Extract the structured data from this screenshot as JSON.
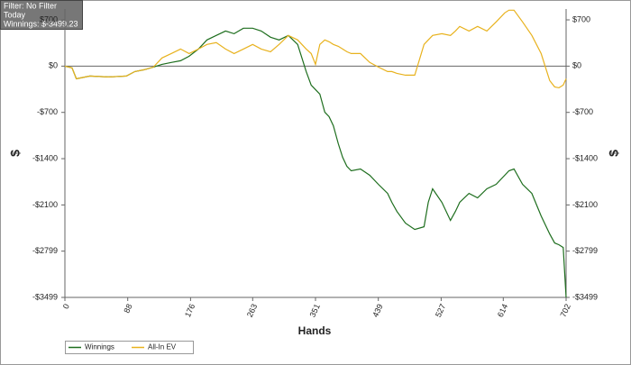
{
  "chart_data": {
    "type": "line",
    "annotations": [
      "Filter: No Filter",
      "Today",
      "Winnings: $-3499.23"
    ],
    "xlabel": "Hands",
    "ylabel": "$",
    "y2label": "$",
    "x": [
      0,
      10,
      16,
      35,
      61,
      86,
      98,
      111,
      124,
      136,
      149,
      162,
      174,
      187,
      199,
      212,
      225,
      237,
      250,
      263,
      275,
      288,
      300,
      313,
      326,
      338,
      345,
      351,
      357,
      364,
      370,
      376,
      383,
      389,
      395,
      401,
      414,
      427,
      439,
      452,
      458,
      465,
      477,
      490,
      503,
      509,
      515,
      528,
      540,
      547,
      553,
      566,
      578,
      591,
      604,
      616,
      622,
      629,
      641,
      654,
      667,
      679,
      686,
      692,
      698,
      702
    ],
    "series": [
      {
        "name": "Winnings",
        "color": "#1e6e1e",
        "values": [
          0,
          -27,
          -191,
          -150,
          -164,
          -150,
          -82,
          -55,
          -14,
          27,
          55,
          82,
          150,
          259,
          396,
          464,
          532,
          491,
          573,
          573,
          532,
          437,
          396,
          464,
          328,
          -82,
          -287,
          -355,
          -423,
          -696,
          -764,
          -901,
          -1174,
          -1379,
          -1515,
          -1583,
          -1556,
          -1652,
          -1788,
          -1925,
          -2061,
          -2198,
          -2375,
          -2471,
          -2430,
          -2061,
          -1856,
          -2061,
          -2334,
          -2198,
          -2061,
          -1925,
          -1993,
          -1856,
          -1788,
          -1652,
          -1583,
          -1556,
          -1788,
          -1925,
          -2266,
          -2539,
          -2675,
          -2703,
          -2744,
          -3499
        ]
      },
      {
        "name": "All-In EV",
        "color": "#e8b21e",
        "values": [
          0,
          -27,
          -191,
          -150,
          -164,
          -150,
          -82,
          -55,
          -14,
          123,
          191,
          259,
          191,
          259,
          328,
          355,
          259,
          191,
          259,
          328,
          259,
          218,
          328,
          464,
          396,
          259,
          191,
          27,
          328,
          396,
          369,
          328,
          300,
          259,
          218,
          191,
          191,
          55,
          -14,
          -82,
          -82,
          -109,
          -137,
          -137,
          328,
          396,
          464,
          491,
          464,
          532,
          601,
          532,
          601,
          532,
          669,
          805,
          846,
          846,
          669,
          464,
          191,
          -218,
          -314,
          -328,
          -287,
          -191
        ]
      }
    ],
    "xlim": [
      0,
      702
    ],
    "xticks": [
      0,
      88,
      176,
      263,
      351,
      439,
      527,
      614,
      702
    ],
    "ylim": [
      -3499,
      864
    ],
    "yticks": [
      {
        "value": 700,
        "label": "$700"
      },
      {
        "value": 0,
        "label": "$0"
      },
      {
        "value": -700,
        "label": "-$700"
      },
      {
        "value": -1400,
        "label": "-$1400"
      },
      {
        "value": -2100,
        "label": "-$2100"
      },
      {
        "value": -2799,
        "label": "-$2799"
      },
      {
        "value": -3499,
        "label": "-$3499"
      }
    ],
    "y2lim": [
      -3499,
      864
    ],
    "y2ticks": [
      {
        "value": 700,
        "label": "$700"
      },
      {
        "value": 0,
        "label": "$0"
      },
      {
        "value": -700,
        "label": "-$700"
      },
      {
        "value": -1400,
        "label": "-$1400"
      },
      {
        "value": -2100,
        "label": "-$2100"
      },
      {
        "value": -2799,
        "label": "-$2799"
      },
      {
        "value": -3499,
        "label": "-$3499"
      }
    ],
    "grid": false,
    "legend": "bottom-left"
  }
}
